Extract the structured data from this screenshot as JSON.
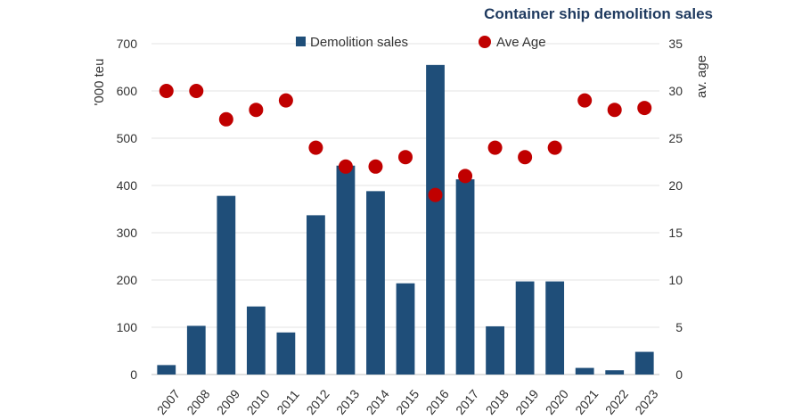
{
  "chart_data": {
    "type": "bar",
    "title": "Container ship demolition sales",
    "categories": [
      "2007",
      "2008",
      "2009",
      "2010",
      "2011",
      "2012",
      "2013",
      "2014",
      "2015",
      "2016",
      "2017",
      "2018",
      "2019",
      "2020",
      "2021",
      "2022",
      "2023"
    ],
    "series": [
      {
        "name": "Demolition sales",
        "type": "bar",
        "axis": "left",
        "color": "#1f4e79",
        "values": [
          20,
          103,
          378,
          144,
          89,
          337,
          442,
          388,
          193,
          655,
          413,
          102,
          197,
          197,
          14,
          9,
          48
        ]
      },
      {
        "name": "Ave Age",
        "type": "scatter",
        "axis": "right",
        "color": "#c00000",
        "values": [
          30,
          30,
          27,
          28,
          29,
          24,
          22,
          22,
          23,
          19,
          21,
          24,
          23,
          24,
          29,
          28,
          28.2
        ]
      }
    ],
    "ylabel": "'000 teu",
    "y2label": "av. age",
    "ylim": [
      0,
      700
    ],
    "y2lim": [
      0,
      35
    ],
    "yticks": [
      "0",
      "100",
      "200",
      "300",
      "400",
      "500",
      "600",
      "700"
    ],
    "y2ticks": [
      "0",
      "5",
      "10",
      "15",
      "20",
      "25",
      "30",
      "35"
    ],
    "grid": true,
    "legend": "top-center"
  }
}
